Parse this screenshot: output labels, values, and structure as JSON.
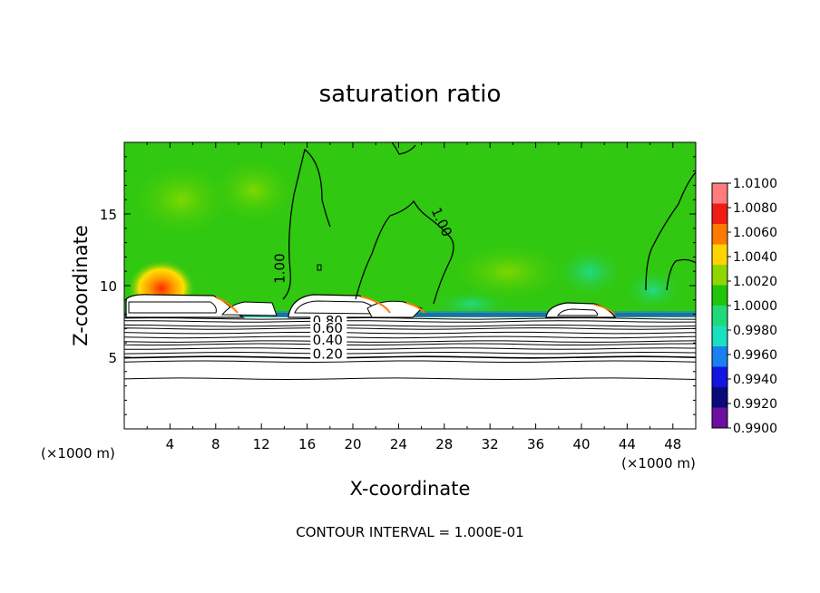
{
  "chart_data": {
    "type": "heatmap",
    "title": "saturation ratio",
    "xlabel": "X-coordinate",
    "ylabel": "Z-coordinate",
    "x_unit": "(×1000 m)",
    "z_unit": "(×1000 m)",
    "xlim": [
      0,
      50
    ],
    "ylim": [
      0,
      20
    ],
    "x_ticks": [
      "4",
      "8",
      "12",
      "16",
      "20",
      "24",
      "28",
      "32",
      "36",
      "40",
      "44",
      "48"
    ],
    "y_ticks": [
      "5",
      "10",
      "15"
    ],
    "x_tick_values": [
      4,
      8,
      12,
      16,
      20,
      24,
      28,
      32,
      36,
      40,
      44,
      48
    ],
    "y_tick_values": [
      5,
      10,
      15
    ],
    "colorbar": {
      "ticks": [
        "1.0100",
        "1.0080",
        "1.0060",
        "1.0040",
        "1.0020",
        "1.0000",
        "0.9980",
        "0.9960",
        "0.9940",
        "0.9920",
        "0.9900"
      ],
      "colors": [
        "#ff7d7d",
        "#f01d14",
        "#ff7a00",
        "#ffd400",
        "#8fd600",
        "#20c40a",
        "#22d97a",
        "#1ae0c2",
        "#1a7ff0",
        "#1414e0",
        "#0a0a7a",
        "#6a0fa0"
      ]
    },
    "contour_labels": [
      {
        "text": "1.00",
        "x": 14.0,
        "z": 11.2,
        "rotate": -90
      },
      {
        "text": "1.00",
        "x": 27.4,
        "z": 14.3,
        "rotate": 65
      },
      {
        "text": "0.80",
        "x": 17.8,
        "z": 7.2
      },
      {
        "text": "0.60",
        "x": 17.8,
        "z": 6.7
      },
      {
        "text": "0.40",
        "x": 17.8,
        "z": 5.9
      },
      {
        "text": "0.20",
        "x": 17.8,
        "z": 4.9
      }
    ],
    "contour_levels_z": [
      7.7,
      7.5,
      7.2,
      7.0,
      6.7,
      6.4,
      6.1,
      5.9,
      5.6,
      5.3,
      5.0,
      4.7,
      3.5
    ],
    "grid": false,
    "legend": "right"
  },
  "footer": "CONTOUR INTERVAL = 1.000E-01"
}
